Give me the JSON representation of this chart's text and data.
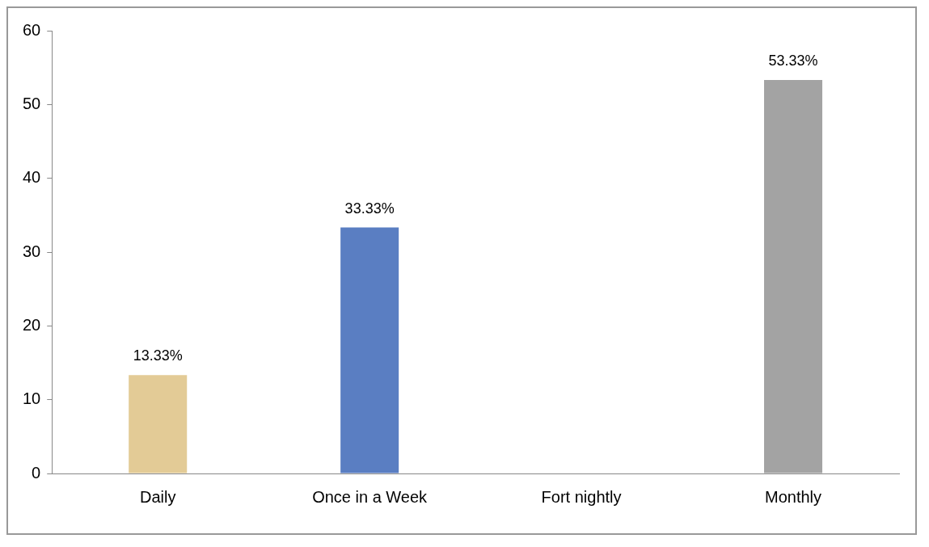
{
  "chart_data": {
    "type": "bar",
    "categories": [
      "Daily",
      "Once in a Week",
      "Fort nightly",
      "Monthly"
    ],
    "values": [
      13.33,
      33.33,
      0,
      53.33
    ],
    "colors": [
      "#e3cb96",
      "#5a7ec2",
      "#a3a3a3",
      "#a3a3a3"
    ],
    "value_labels": [
      "13.33%",
      "33.33%",
      null,
      "53.33%"
    ],
    "ylim": [
      0,
      60
    ],
    "yticks": [
      0,
      10,
      20,
      30,
      40,
      50,
      60
    ],
    "grid": false,
    "legend": false
  }
}
